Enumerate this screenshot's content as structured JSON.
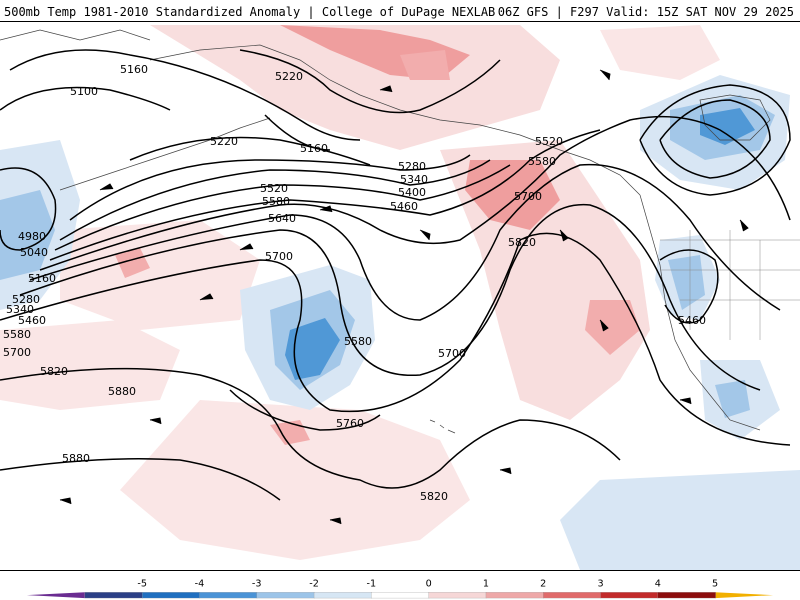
{
  "title": {
    "left": "500mb Temp 1981-2010 Standardized Anomaly | College of DuPage NEXLAB",
    "right": "06Z GFS | F297 Valid: 15Z SAT NOV 29 2025"
  },
  "contour_labels": [
    {
      "text": "5160",
      "kind": "height"
    },
    {
      "text": "5100",
      "kind": "height"
    },
    {
      "text": "5220",
      "kind": "height"
    },
    {
      "text": "5220",
      "kind": "height"
    },
    {
      "text": "5160",
      "kind": "height"
    },
    {
      "text": "5280",
      "kind": "height"
    },
    {
      "text": "5340",
      "kind": "height"
    },
    {
      "text": "5400",
      "kind": "height"
    },
    {
      "text": "5460",
      "kind": "height"
    },
    {
      "text": "5520",
      "kind": "height"
    },
    {
      "text": "5580",
      "kind": "height"
    },
    {
      "text": "5700",
      "kind": "height"
    },
    {
      "text": "5520",
      "kind": "height"
    },
    {
      "text": "5580",
      "kind": "height"
    },
    {
      "text": "5640",
      "kind": "height"
    },
    {
      "text": "5700",
      "kind": "height"
    },
    {
      "text": "4980",
      "kind": "height"
    },
    {
      "text": "5040",
      "kind": "height"
    },
    {
      "text": "5160",
      "kind": "height"
    },
    {
      "text": "5280",
      "kind": "height"
    },
    {
      "text": "5340",
      "kind": "height"
    },
    {
      "text": "5460",
      "kind": "height"
    },
    {
      "text": "5580",
      "kind": "height"
    },
    {
      "text": "5700",
      "kind": "height"
    },
    {
      "text": "5820",
      "kind": "height"
    },
    {
      "text": "5880",
      "kind": "height"
    },
    {
      "text": "5580",
      "kind": "height"
    },
    {
      "text": "5700",
      "kind": "height"
    },
    {
      "text": "5820",
      "kind": "height"
    },
    {
      "text": "5460",
      "kind": "height"
    },
    {
      "text": "5760",
      "kind": "height"
    },
    {
      "text": "5880",
      "kind": "height"
    },
    {
      "text": "5820",
      "kind": "height"
    }
  ],
  "legend": {
    "ticks": [
      "-5",
      "-4",
      "-3",
      "-2",
      "-1",
      "0",
      "1",
      "2",
      "3",
      "4",
      "5"
    ],
    "colors": [
      "#6a2c91",
      "#2b3f86",
      "#1f6fc0",
      "#4a93d6",
      "#9cc4e8",
      "#d6e6f4",
      "#ffffff",
      "#f6d7d7",
      "#eea8a8",
      "#e06a6a",
      "#c22a2a",
      "#8c0d0d",
      "#f2b000"
    ]
  },
  "colors": {
    "contour": "#000000",
    "warm_light": "#f7d9d9",
    "warm_mid": "#ee9a9a",
    "warm_strong": "#e06b6b",
    "cold_light": "#d6e4f3",
    "cold_mid": "#9ec3e6",
    "cold_strong": "#4f95d4",
    "coast": "#333333"
  }
}
